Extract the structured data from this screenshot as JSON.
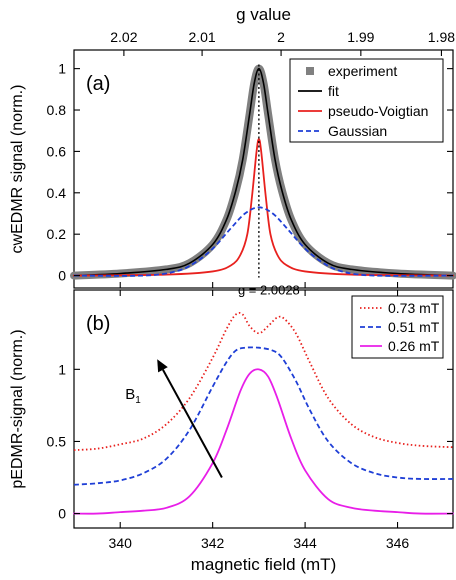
{
  "chart_data": [
    {
      "panel_label": "(a)",
      "type": "line",
      "ylabel": "cwEDMR signal (norm.)",
      "top_axis_label": "g value",
      "top_ticks": [
        "2.02",
        "2.01",
        "2",
        "1.99",
        "1.98"
      ],
      "top_tick_values": [
        2.02,
        2.01,
        2.0,
        1.99,
        1.98
      ],
      "xlim": [
        339,
        347.2
      ],
      "ylim": [
        -0.06,
        1.09
      ],
      "yticks": [
        0,
        0.2,
        0.4,
        0.6,
        0.8,
        1
      ],
      "ytick_labels": [
        "0",
        "0.2",
        "0.4",
        "0.6",
        "0.8",
        "1"
      ],
      "annotation": "g = 2.0028",
      "annotation_x": 343.0,
      "legend_position": "top-right",
      "series": [
        {
          "name": "experiment",
          "color": "#808080",
          "style": "thick-gray",
          "x": [
            339.0,
            340.0,
            341.0,
            341.5,
            342.0,
            342.3,
            342.5,
            342.65,
            342.8,
            342.9,
            343.0,
            343.1,
            343.2,
            343.35,
            343.5,
            343.7,
            344.0,
            344.5,
            345.0,
            346.0,
            347.2
          ],
          "y": [
            0.0,
            0.01,
            0.03,
            0.06,
            0.15,
            0.27,
            0.41,
            0.56,
            0.78,
            0.93,
            1.0,
            0.93,
            0.78,
            0.56,
            0.41,
            0.27,
            0.15,
            0.06,
            0.03,
            0.01,
            0.0
          ]
        },
        {
          "name": "fit",
          "color": "#000000",
          "style": "solid",
          "x": [
            339.0,
            340.0,
            341.0,
            341.5,
            342.0,
            342.3,
            342.5,
            342.65,
            342.8,
            342.9,
            343.0,
            343.1,
            343.2,
            343.35,
            343.5,
            343.7,
            344.0,
            344.5,
            345.0,
            346.0,
            347.2
          ],
          "y": [
            0.0,
            0.01,
            0.03,
            0.06,
            0.15,
            0.27,
            0.41,
            0.56,
            0.78,
            0.93,
            1.0,
            0.93,
            0.78,
            0.56,
            0.41,
            0.27,
            0.15,
            0.06,
            0.03,
            0.01,
            0.0
          ]
        },
        {
          "name": "pseudo-Voigtian",
          "color": "#e8211e",
          "style": "solid",
          "x": [
            339.0,
            341.0,
            342.0,
            342.4,
            342.6,
            342.75,
            342.85,
            342.95,
            343.0,
            343.05,
            343.15,
            343.25,
            343.4,
            343.6,
            344.0,
            345.0,
            347.2
          ],
          "y": [
            0.0,
            0.005,
            0.02,
            0.05,
            0.1,
            0.2,
            0.38,
            0.6,
            0.66,
            0.6,
            0.38,
            0.2,
            0.1,
            0.05,
            0.02,
            0.005,
            0.0
          ]
        },
        {
          "name": "Gaussian",
          "color": "#1f3fd6",
          "style": "dashed",
          "x": [
            339.0,
            340.5,
            341.2,
            341.6,
            342.0,
            342.4,
            342.7,
            343.0,
            343.3,
            343.6,
            344.0,
            344.4,
            344.8,
            345.5,
            347.2
          ],
          "y": [
            0.0,
            0.0,
            0.02,
            0.06,
            0.13,
            0.23,
            0.3,
            0.33,
            0.3,
            0.23,
            0.13,
            0.06,
            0.02,
            0.0,
            0.0
          ]
        }
      ]
    },
    {
      "panel_label": "(b)",
      "type": "line",
      "ylabel": "pEDMR-signal (norm.)",
      "xlabel": "magnetic field (mT)",
      "xlim": [
        339,
        347.2
      ],
      "ylim": [
        -0.1,
        1.55
      ],
      "xticks": [
        340,
        342,
        344,
        346
      ],
      "xtick_labels": [
        "340",
        "342",
        "344",
        "346"
      ],
      "yticks": [
        0,
        0.5,
        1
      ],
      "ytick_labels": [
        "0",
        "0.5",
        "1"
      ],
      "annotation": "B",
      "annotation_subscript": "1",
      "legend_position": "top-right",
      "arrow": {
        "from": [
          342.2,
          0.25
        ],
        "to": [
          340.8,
          1.07
        ]
      },
      "series": [
        {
          "name": "0.73 mT",
          "color": "#e8211e",
          "style": "dotted",
          "x": [
            339.0,
            339.5,
            340.0,
            340.5,
            341.0,
            341.5,
            342.0,
            342.3,
            342.5,
            342.65,
            342.8,
            343.0,
            343.2,
            343.4,
            343.55,
            343.8,
            344.1,
            344.5,
            345.0,
            345.5,
            346.0,
            346.5,
            347.2
          ],
          "y": [
            0.44,
            0.45,
            0.48,
            0.52,
            0.62,
            0.8,
            1.08,
            1.28,
            1.38,
            1.38,
            1.3,
            1.25,
            1.3,
            1.36,
            1.35,
            1.25,
            1.05,
            0.8,
            0.62,
            0.53,
            0.49,
            0.47,
            0.46
          ]
        },
        {
          "name": "0.51 mT",
          "color": "#1f3fd6",
          "style": "dashed",
          "x": [
            339.0,
            339.5,
            340.0,
            340.5,
            341.0,
            341.5,
            342.0,
            342.3,
            342.5,
            342.7,
            343.0,
            343.3,
            343.5,
            343.8,
            344.1,
            344.5,
            345.0,
            345.5,
            346.0,
            346.5,
            347.2
          ],
          "y": [
            0.2,
            0.21,
            0.23,
            0.28,
            0.38,
            0.58,
            0.88,
            1.05,
            1.13,
            1.15,
            1.15,
            1.13,
            1.08,
            0.92,
            0.72,
            0.5,
            0.35,
            0.28,
            0.25,
            0.24,
            0.24
          ]
        },
        {
          "name": "0.26 mT",
          "color": "#e81ee8",
          "style": "solid",
          "x": [
            339.0,
            339.5,
            340.0,
            340.5,
            341.0,
            341.5,
            342.0,
            342.3,
            342.6,
            342.8,
            343.0,
            343.2,
            343.4,
            343.7,
            344.0,
            344.5,
            345.0,
            345.5,
            346.0,
            346.5,
            347.2
          ],
          "y": [
            0.0,
            0.0,
            0.01,
            0.02,
            0.04,
            0.12,
            0.35,
            0.58,
            0.85,
            0.97,
            1.0,
            0.95,
            0.8,
            0.52,
            0.3,
            0.1,
            0.04,
            0.02,
            0.01,
            0.0,
            0.0
          ]
        }
      ]
    }
  ]
}
